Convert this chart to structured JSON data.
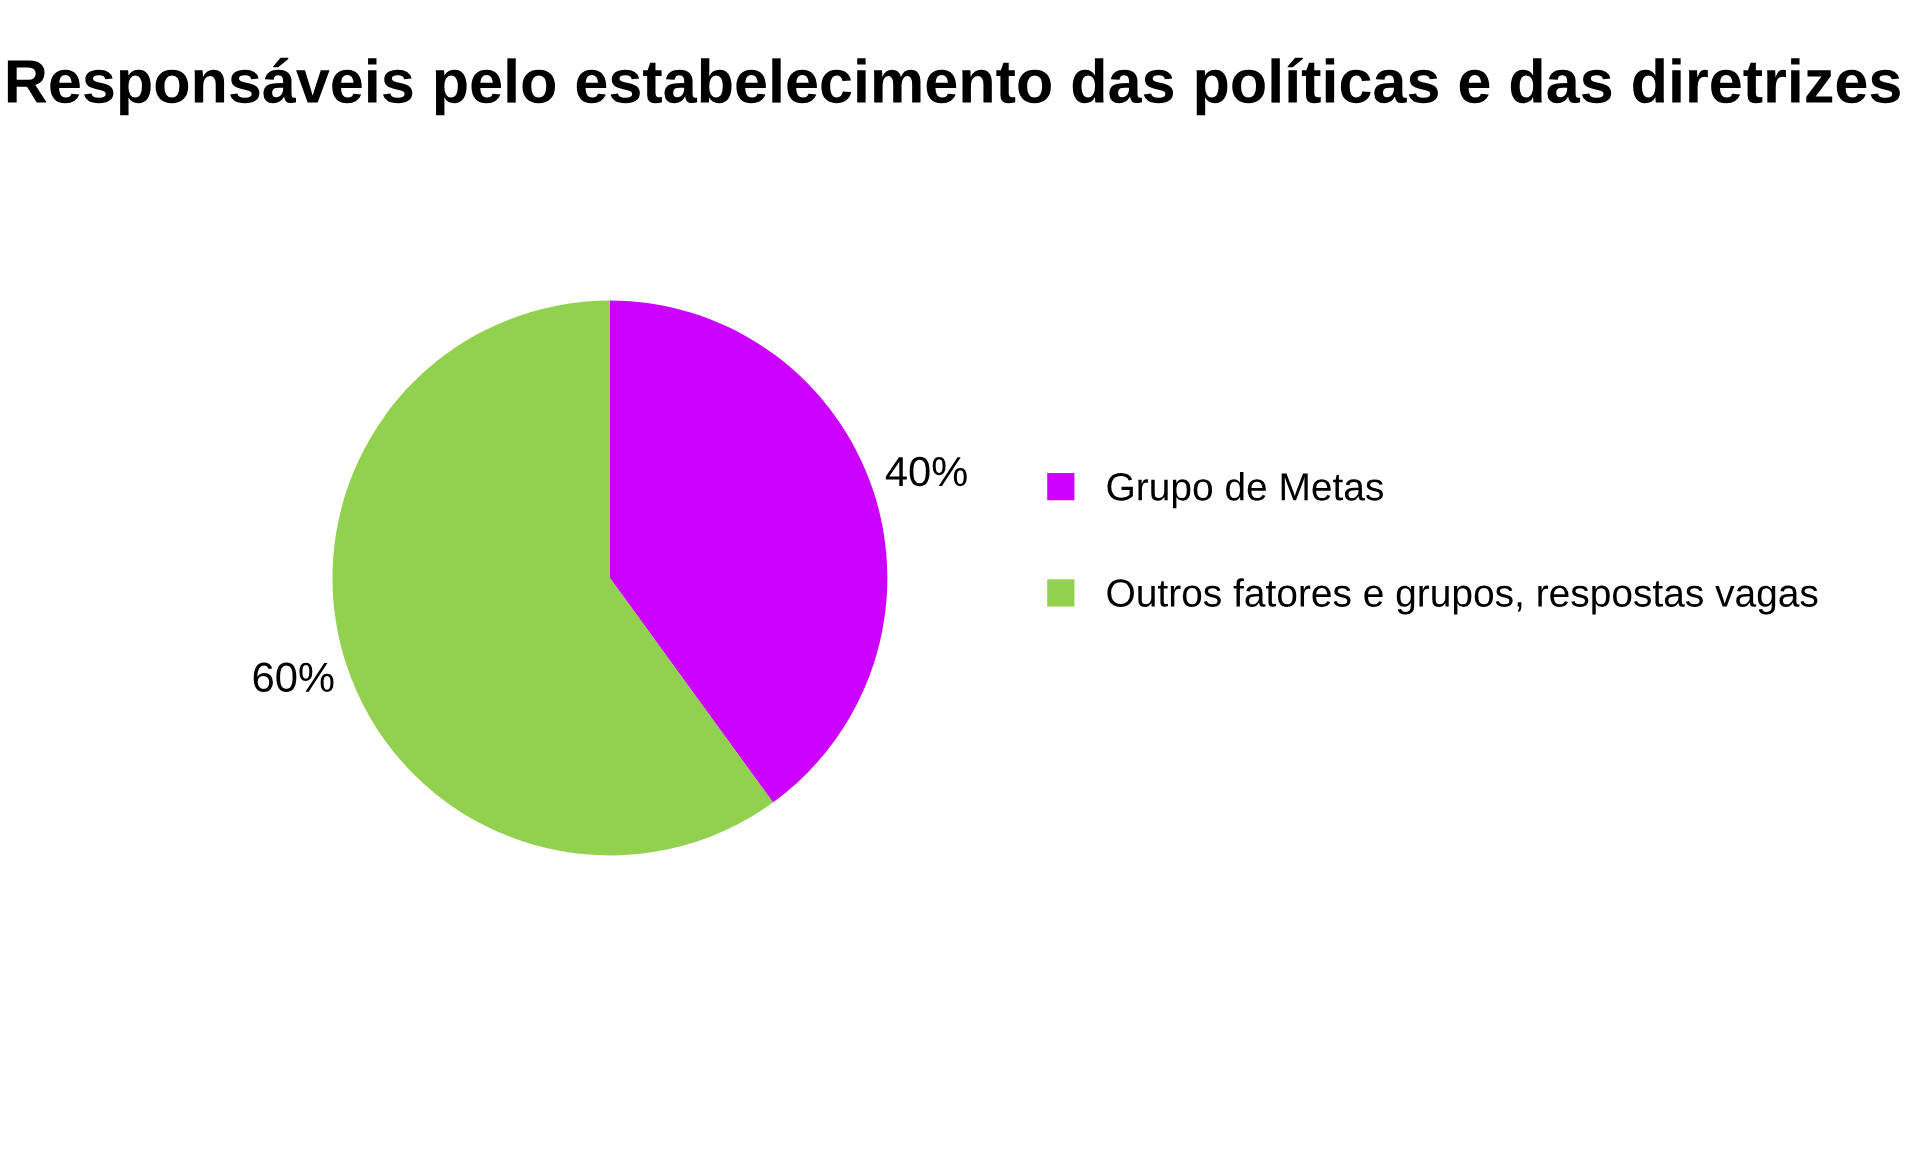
{
  "chart_data": {
    "type": "pie",
    "title": "Responsáveis pelo estabelecimento das políticas e das diretrizes",
    "categories": [
      "Grupo de Metas",
      "Outros fatores e grupos, respostas vagas"
    ],
    "values": [
      40,
      60
    ],
    "colors": [
      "#cc00ff",
      "#92d050"
    ],
    "value_labels": [
      "40%",
      "60%"
    ],
    "legend": "right"
  }
}
